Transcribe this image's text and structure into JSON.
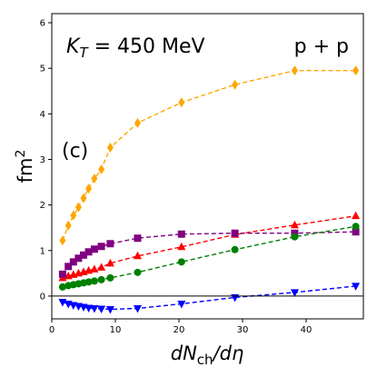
{
  "chart_data": {
    "type": "line",
    "title": "",
    "xlabel": "dN_ch/dη",
    "ylabel": "fm²",
    "xlim": [
      0,
      49
    ],
    "ylim": [
      -0.5,
      6.2
    ],
    "xticks": [
      0,
      10,
      20,
      30,
      40
    ],
    "yticks": [
      0,
      1,
      2,
      3,
      4,
      5,
      6
    ],
    "grid": false,
    "legend": "none",
    "hline_y": 0,
    "annotations": {
      "kt": "K_T = 450 MeV",
      "system": "p + p",
      "panel": "(c)"
    },
    "series": [
      {
        "color": "#FFA500",
        "marker": "diamond",
        "x": [
          1.7,
          2.6,
          3.4,
          4.2,
          5.0,
          5.8,
          6.7,
          7.8,
          9.2,
          13.5,
          20.4,
          28.8,
          38.2,
          47.8
        ],
        "y": [
          1.22,
          1.55,
          1.77,
          1.95,
          2.15,
          2.36,
          2.58,
          2.78,
          3.26,
          3.8,
          4.25,
          4.64,
          4.95,
          4.95
        ]
      },
      {
        "color": "#FF0000",
        "marker": "triangle-up",
        "x": [
          1.7,
          2.6,
          3.4,
          4.2,
          5.0,
          5.8,
          6.7,
          7.8,
          9.2,
          13.5,
          20.4,
          28.8,
          38.2,
          47.8
        ],
        "y": [
          0.4,
          0.44,
          0.47,
          0.5,
          0.53,
          0.56,
          0.59,
          0.63,
          0.72,
          0.88,
          1.08,
          1.35,
          1.56,
          1.76
        ]
      },
      {
        "color": "#800080",
        "marker": "square",
        "x": [
          1.7,
          2.6,
          3.4,
          4.2,
          5.0,
          5.8,
          6.7,
          7.8,
          9.2,
          13.5,
          20.4,
          28.8,
          38.2,
          47.8
        ],
        "y": [
          0.48,
          0.65,
          0.75,
          0.83,
          0.9,
          0.97,
          1.03,
          1.09,
          1.15,
          1.27,
          1.36,
          1.38,
          1.38,
          1.41
        ]
      },
      {
        "color": "#008000",
        "marker": "circle",
        "x": [
          1.7,
          2.6,
          3.4,
          4.2,
          5.0,
          5.8,
          6.7,
          7.8,
          9.2,
          13.5,
          20.4,
          28.8,
          38.2,
          47.8
        ],
        "y": [
          0.2,
          0.23,
          0.25,
          0.27,
          0.29,
          0.31,
          0.33,
          0.36,
          0.4,
          0.52,
          0.75,
          1.02,
          1.3,
          1.53
        ]
      },
      {
        "color": "#0000FF",
        "marker": "triangle-down",
        "x": [
          1.7,
          2.6,
          3.4,
          4.2,
          5.0,
          5.8,
          6.7,
          7.8,
          9.2,
          13.5,
          20.4,
          28.8,
          38.2,
          47.8
        ],
        "y": [
          -0.13,
          -0.17,
          -0.2,
          -0.22,
          -0.24,
          -0.26,
          -0.27,
          -0.28,
          -0.29,
          -0.27,
          -0.17,
          -0.03,
          0.08,
          0.22
        ]
      }
    ]
  }
}
